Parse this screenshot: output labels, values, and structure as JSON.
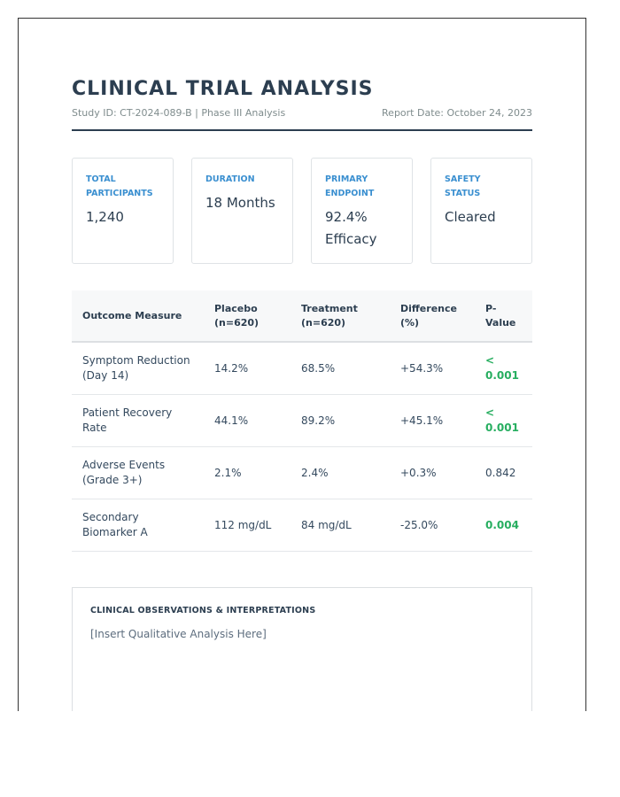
{
  "header": {
    "title": "CLINICAL TRIAL ANALYSIS",
    "study_info": "Study ID: CT-2024-089-B | Phase III Analysis",
    "report_date": "Report Date: October 24, 2023"
  },
  "cards": [
    {
      "label": "TOTAL PARTICIPANTS",
      "value": "1,240"
    },
    {
      "label": "DURATION",
      "value": "18 Months"
    },
    {
      "label": "PRIMARY ENDPOINT",
      "value": "92.4% Efficacy"
    },
    {
      "label": "SAFETY STATUS",
      "value": "Cleared"
    }
  ],
  "table": {
    "headers": [
      "Outcome Measure",
      "Placebo (n=620)",
      "Treatment (n=620)",
      "Difference (%)",
      "P-Value"
    ],
    "rows": [
      {
        "measure": "Symptom Reduction (Day 14)",
        "placebo": "14.2%",
        "treatment": "68.5%",
        "difference": "+54.3%",
        "p_value": "< 0.001"
      },
      {
        "measure": "Patient Recovery Rate",
        "placebo": "44.1%",
        "treatment": "89.2%",
        "difference": "+45.1%",
        "p_value": "< 0.001"
      },
      {
        "measure": "Adverse Events (Grade 3+)",
        "placebo": "2.1%",
        "treatment": "2.4%",
        "difference": "+0.3%",
        "p_value": "0.842"
      },
      {
        "measure": "Secondary Biomarker A",
        "placebo": "112 mg/dL",
        "treatment": "84 mg/dL",
        "difference": "-25.0%",
        "p_value": "0.004"
      }
    ]
  },
  "observations": {
    "title": "CLINICAL OBSERVATIONS & INTERPRETATIONS",
    "text": "[Insert Qualitative Analysis Here]"
  },
  "colors": {
    "heading": "#2c3e50",
    "card_label": "#3a8fd0",
    "significant": "#27ae60"
  }
}
